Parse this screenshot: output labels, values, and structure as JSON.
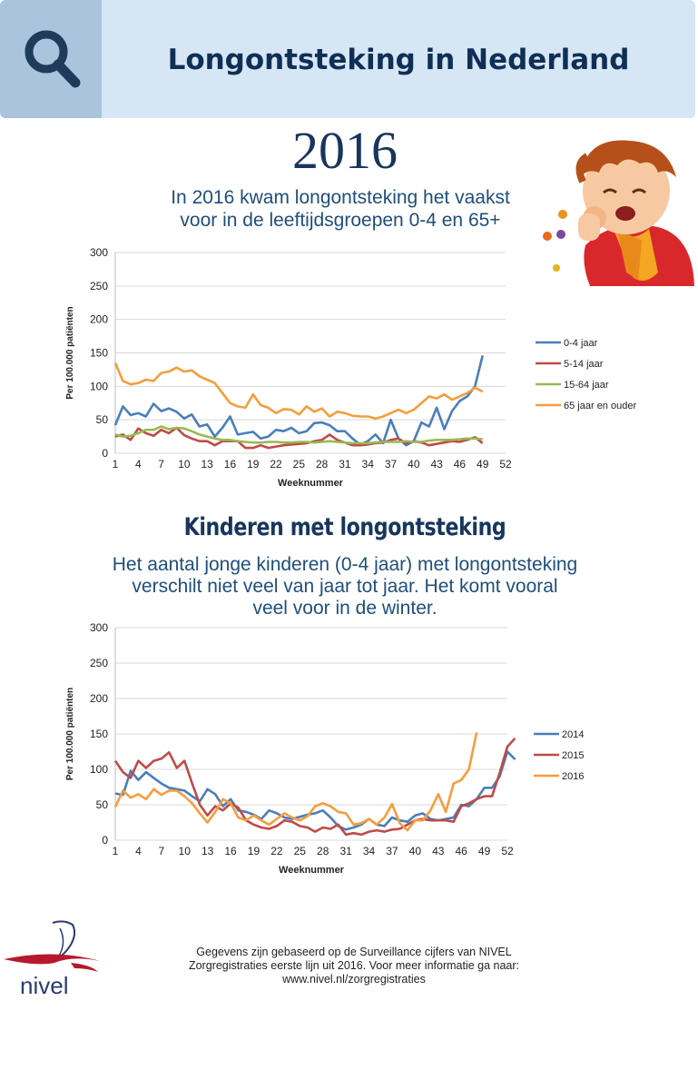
{
  "header": {
    "title": "Longontsteking in Nederland"
  },
  "year": "2016",
  "intro": {
    "line1": "In 2016 kwam longontsteking het vaakst",
    "line2": "voor in de leeftijdsgroepen 0-4 en 65+"
  },
  "section2": {
    "title": "Kinderen met longontsteking",
    "line1": "Het aantal jonge kinderen (0-4 jaar) met longontsteking",
    "line2": "verschilt niet veel van jaar tot jaar. Het komt vooral",
    "line3": "veel voor in de winter."
  },
  "footer": {
    "line1": "Gegevens zijn gebaseerd op de Surveillance cijfers van NIVEL",
    "line2": "Zorgregistraties eerste lijn uit 2016. Voor meer informatie ga naar:",
    "line3": "www.nivel.nl/zorgregistraties",
    "logo_text": "nivel"
  },
  "colors": {
    "blue": "#4a7ebb",
    "red": "#be4b48",
    "green": "#98b954",
    "orange": "#f59d3d",
    "header_bg": "#d6e6f4",
    "search_bg": "#a9c4dc"
  },
  "icons": {
    "search": "search-icon",
    "child": "coughing-child-illustration",
    "logo": "nivel-logo"
  },
  "chart_data": [
    {
      "type": "line",
      "xlabel": "Weeknummer",
      "ylabel": "Per 100.000 patiënten",
      "ylim": [
        0,
        300
      ],
      "yticks": [
        0,
        50,
        100,
        150,
        200,
        250,
        300
      ],
      "xticks": [
        1,
        4,
        7,
        10,
        13,
        16,
        19,
        22,
        25,
        28,
        31,
        34,
        37,
        40,
        43,
        46,
        49,
        52
      ],
      "xlim": [
        1,
        52
      ],
      "grid": "horizontal",
      "legend": "right",
      "series": [
        {
          "name": "0-4 jaar",
          "color": "#4a7ebb",
          "values": [
            42,
            70,
            57,
            60,
            55,
            74,
            63,
            67,
            62,
            52,
            58,
            40,
            43,
            25,
            38,
            55,
            28,
            30,
            32,
            22,
            25,
            35,
            33,
            38,
            30,
            33,
            45,
            46,
            42,
            33,
            33,
            22,
            13,
            18,
            28,
            15,
            50,
            22,
            12,
            18,
            46,
            40,
            68,
            36,
            63,
            78,
            85,
            100,
            146
          ]
        },
        {
          "name": "5-14 jaar",
          "color": "#be4b48",
          "values": [
            25,
            28,
            20,
            37,
            30,
            26,
            35,
            30,
            38,
            27,
            22,
            18,
            18,
            12,
            18,
            18,
            18,
            8,
            8,
            12,
            8,
            10,
            12,
            13,
            14,
            15,
            18,
            20,
            28,
            20,
            16,
            12,
            12,
            13,
            15,
            16,
            20,
            22,
            15,
            18,
            16,
            12,
            14,
            16,
            18,
            17,
            20,
            24,
            15
          ]
        },
        {
          "name": "15-64 jaar",
          "color": "#98b954",
          "values": [
            28,
            25,
            26,
            30,
            35,
            35,
            40,
            36,
            38,
            37,
            33,
            28,
            25,
            22,
            20,
            20,
            18,
            17,
            16,
            16,
            17,
            17,
            16,
            16,
            17,
            17,
            16,
            17,
            18,
            17,
            16,
            15,
            15,
            15,
            16,
            17,
            17,
            17,
            18,
            17,
            17,
            19,
            20,
            20,
            20,
            21,
            22,
            22,
            21
          ]
        },
        {
          "name": "65 jaar en ouder",
          "color": "#f59d3d",
          "values": [
            135,
            108,
            103,
            105,
            110,
            108,
            120,
            122,
            128,
            122,
            124,
            115,
            110,
            105,
            90,
            75,
            70,
            68,
            88,
            72,
            68,
            60,
            66,
            65,
            58,
            70,
            62,
            67,
            55,
            62,
            60,
            56,
            55,
            55,
            52,
            55,
            60,
            65,
            60,
            65,
            75,
            85,
            82,
            88,
            80,
            85,
            90,
            98,
            92
          ]
        }
      ]
    },
    {
      "type": "line",
      "xlabel": "Weeknummer",
      "ylabel": "Per 100.000 patiënten",
      "ylim": [
        0,
        300
      ],
      "yticks": [
        0,
        50,
        100,
        150,
        200,
        250,
        300
      ],
      "xticks": [
        1,
        4,
        7,
        10,
        13,
        16,
        19,
        22,
        25,
        28,
        31,
        34,
        37,
        40,
        43,
        46,
        49,
        52
      ],
      "xlim": [
        1,
        52
      ],
      "grid": "horizontal",
      "legend": "right",
      "series": [
        {
          "name": "2014",
          "color": "#4a7ebb",
          "values": [
            66,
            64,
            98,
            85,
            96,
            88,
            80,
            74,
            72,
            70,
            62,
            55,
            72,
            65,
            48,
            58,
            42,
            40,
            36,
            30,
            42,
            38,
            32,
            30,
            33,
            36,
            38,
            42,
            32,
            20,
            15,
            18,
            22,
            30,
            22,
            20,
            32,
            28,
            26,
            35,
            38,
            30,
            28,
            30,
            32,
            50,
            48,
            58,
            74,
            74,
            90,
            125,
            114
          ]
        },
        {
          "name": "2015",
          "color": "#be4b48",
          "values": [
            112,
            96,
            88,
            112,
            102,
            112,
            115,
            124,
            102,
            112,
            80,
            50,
            35,
            48,
            42,
            52,
            46,
            28,
            22,
            18,
            16,
            20,
            28,
            26,
            20,
            18,
            12,
            18,
            16,
            22,
            8,
            10,
            8,
            12,
            14,
            12,
            15,
            16,
            22,
            28,
            30,
            28,
            28,
            28,
            26,
            48,
            52,
            58,
            62,
            62,
            95,
            132,
            144
          ]
        },
        {
          "name": "2016",
          "color": "#f59d3d",
          "values": [
            47,
            70,
            60,
            65,
            58,
            72,
            64,
            70,
            70,
            62,
            52,
            38,
            25,
            40,
            58,
            52,
            32,
            28,
            35,
            28,
            22,
            30,
            38,
            32,
            28,
            34,
            48,
            52,
            48,
            40,
            38,
            22,
            24,
            30,
            22,
            32,
            51,
            24,
            14,
            28,
            28,
            42,
            65,
            40,
            80,
            85,
            100,
            152
          ]
        }
      ]
    }
  ]
}
